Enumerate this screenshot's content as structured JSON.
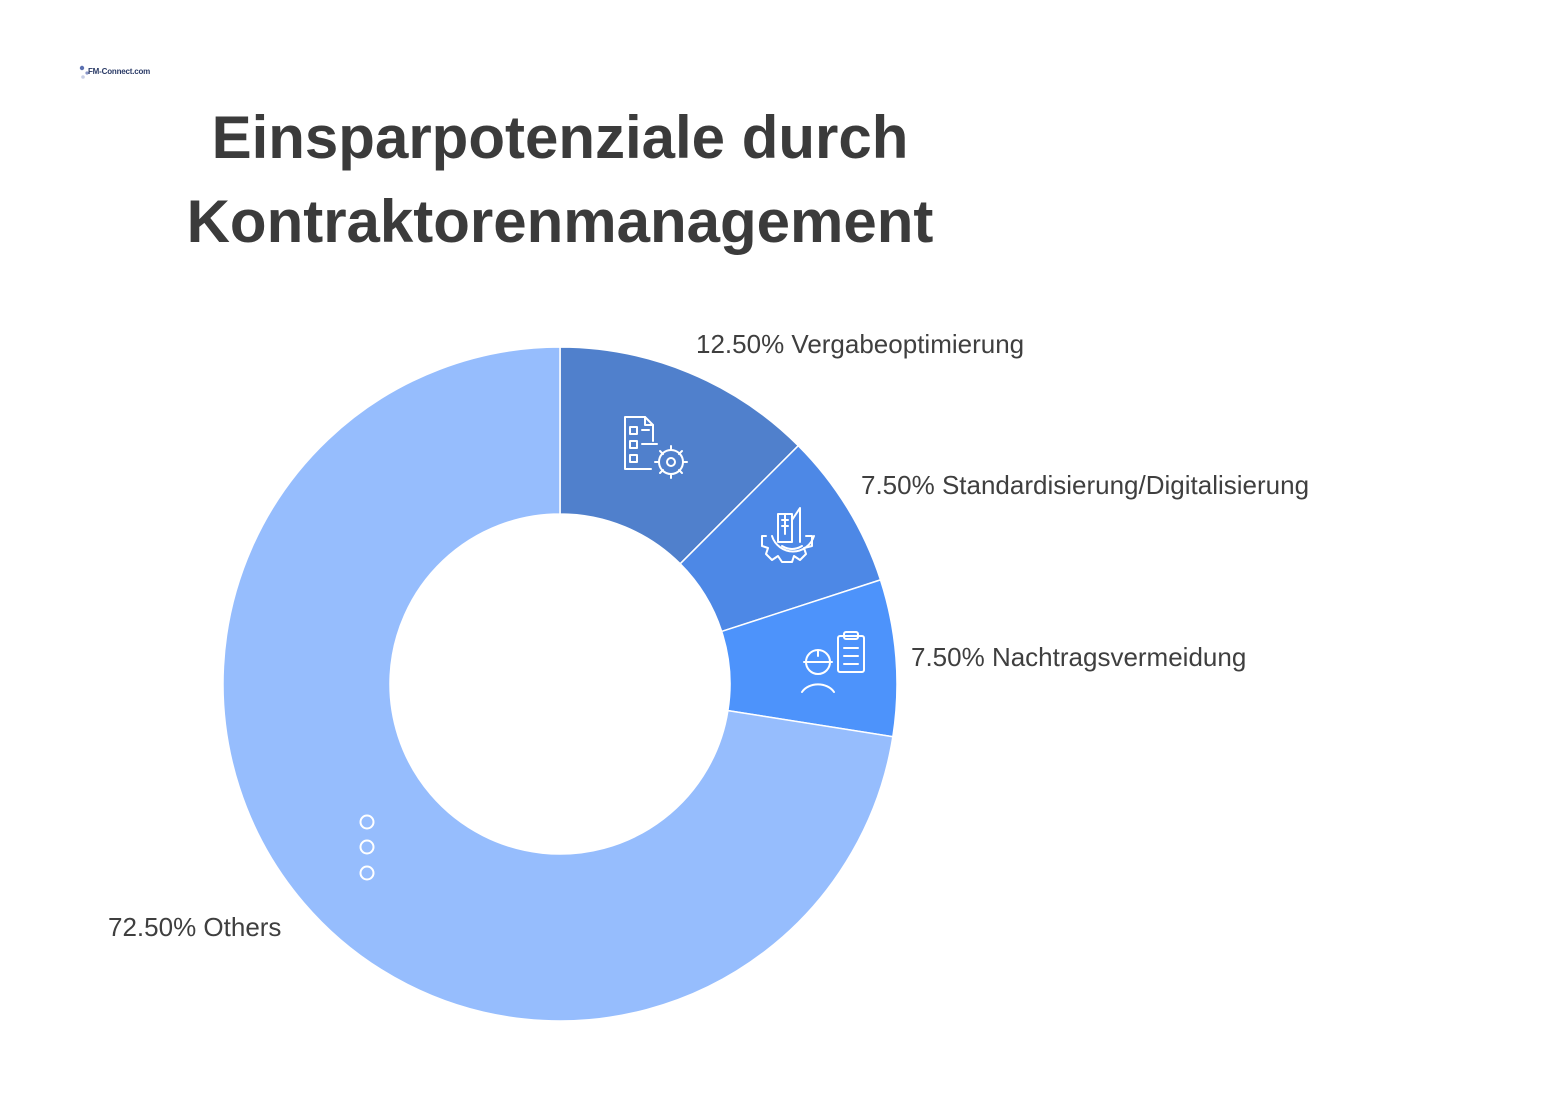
{
  "logo": {
    "text": "FM-Connect.com"
  },
  "chart_data": {
    "type": "pie",
    "variant": "donut",
    "title_lines": [
      "Einsparpotenziale durch",
      "Kontraktorenmanagement"
    ],
    "slices": [
      {
        "label": "Vergabeoptimierung",
        "value": 12.5,
        "display": "12.50% Vergabeoptimierung",
        "color": "#5080cc",
        "icon": "document-gear-icon"
      },
      {
        "label": "Standardisierung/Digitalisierung",
        "value": 7.5,
        "display": "7.50% Standardisierung/Digitalisierung",
        "color": "#4d88e6",
        "icon": "buildings-gear-icon"
      },
      {
        "label": "Nachtragsvermeidung",
        "value": 7.5,
        "display": "7.50% Nachtragsvermeidung",
        "color": "#4d93fb",
        "icon": "worker-clipboard-icon"
      },
      {
        "label": "Others",
        "value": 72.5,
        "display": "72.50% Others",
        "color": "#96bdfd",
        "icon": "more-dots-icon"
      }
    ]
  }
}
